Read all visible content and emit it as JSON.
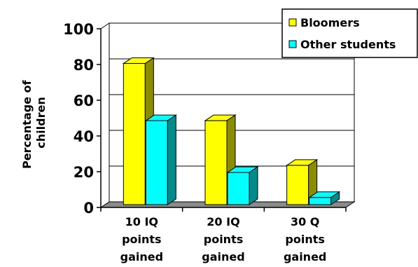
{
  "chart_data": {
    "type": "bar",
    "categories": [
      [
        "10 IQ",
        "points",
        "gained"
      ],
      [
        "20 IQ",
        "points",
        "gained"
      ],
      [
        "30 Q",
        "points",
        "gained"
      ]
    ],
    "series": [
      {
        "name": "Bloomers",
        "values": [
          79,
          47,
          22
        ],
        "color": "#ffff00"
      },
      {
        "name": "Other students",
        "values": [
          47,
          18,
          4
        ],
        "color": "#00ffff"
      }
    ],
    "ylabel": [
      "Percentage of",
      "children"
    ],
    "ylim": [
      0,
      100
    ],
    "yticks": [
      0,
      20,
      40,
      60,
      80,
      100
    ],
    "grid": true,
    "legend": "top-right",
    "style": "3d-bar"
  }
}
